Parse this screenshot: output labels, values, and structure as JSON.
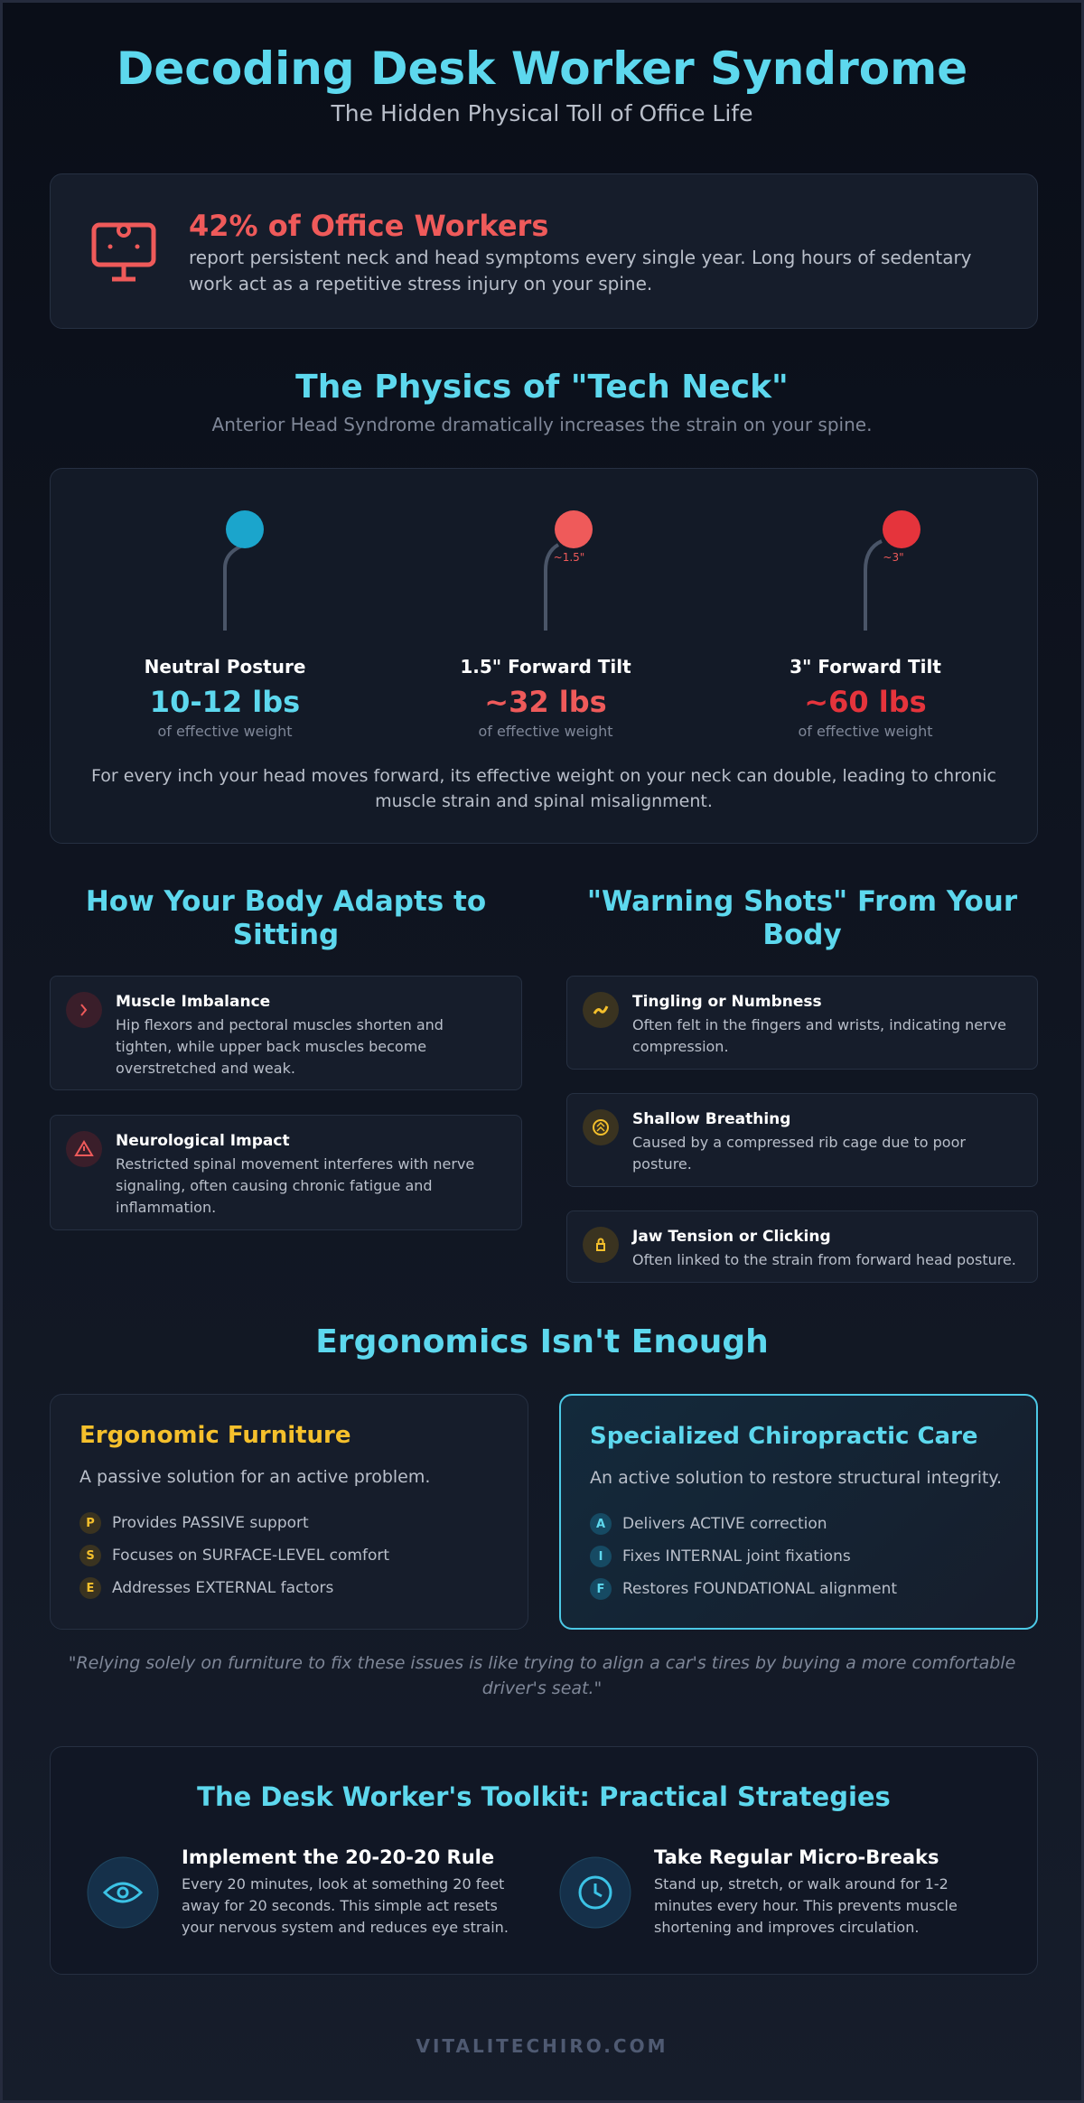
{
  "header": {
    "title": "Decoding Desk Worker Syndrome",
    "subtitle": "The Hidden Physical Toll of Office Life"
  },
  "stat": {
    "headline": "42% of Office Workers",
    "text": "report persistent neck and head symptoms every single year. Long hours of sedentary work act as a repetitive stress injury on your spine."
  },
  "physics": {
    "title": "The Physics of \"Tech Neck\"",
    "subtitle": "Anterior Head Syndrome dramatically increases the strain on your spine.",
    "postures": [
      {
        "label": "Neutral Posture",
        "weight": "10-12 lbs",
        "caption": "of effective weight"
      },
      {
        "angle": "~1.5\"",
        "label": "1.5\" Forward Tilt",
        "weight": "~32 lbs",
        "caption": "of effective weight"
      },
      {
        "angle": "~3\"",
        "label": "3\" Forward Tilt",
        "weight": "~60 lbs",
        "caption": "of effective weight"
      }
    ],
    "note": "For every inch your head moves forward, its effective weight on your neck can double, leading to chronic muscle strain and spinal misalignment."
  },
  "adapts": {
    "title": "How Your Body Adapts to Sitting",
    "items": [
      {
        "title": "Muscle Imbalance",
        "text": "Hip flexors and pectoral muscles shorten and tighten, while upper back muscles become overstretched and weak."
      },
      {
        "title": "Neurological Impact",
        "text": "Restricted spinal movement interferes with nerve signaling, often causing chronic fatigue and inflammation."
      }
    ]
  },
  "warnings": {
    "title": "\"Warning Shots\" From Your Body",
    "items": [
      {
        "title": "Tingling or Numbness",
        "text": "Often felt in the fingers and wrists, indicating nerve compression."
      },
      {
        "title": "Shallow Breathing",
        "text": "Caused by a compressed rib cage due to poor posture."
      },
      {
        "title": "Jaw Tension or Clicking",
        "text": "Often linked to the strain from forward head posture."
      }
    ]
  },
  "ergonomics": {
    "title": "Ergonomics Isn't Enough",
    "furniture": {
      "title": "Ergonomic Furniture",
      "subtitle": "A passive solution for an active problem.",
      "points": [
        {
          "badge": "P",
          "text": "Provides PASSIVE support"
        },
        {
          "badge": "S",
          "text": "Focuses on SURFACE-LEVEL comfort"
        },
        {
          "badge": "E",
          "text": "Addresses EXTERNAL factors"
        }
      ]
    },
    "care": {
      "title": "Specialized Chiropractic Care",
      "subtitle": "An active solution to restore structural integrity.",
      "points": [
        {
          "badge": "A",
          "text": "Delivers ACTIVE correction"
        },
        {
          "badge": "I",
          "text": "Fixes INTERNAL joint fixations"
        },
        {
          "badge": "F",
          "text": "Restores FOUNDATIONAL alignment"
        }
      ]
    },
    "quote": "\"Relying solely on furniture to fix these issues is like trying to align a car's tires by buying a more comfortable driver's seat.\""
  },
  "toolkit": {
    "title": "The Desk Worker's Toolkit: Practical Strategies",
    "items": [
      {
        "title": "Implement the 20-20-20 Rule",
        "text": "Every 20 minutes, look at something 20 feet away for 20 seconds. This simple act resets your nervous system and reduces eye strain."
      },
      {
        "title": "Take Regular Micro-Breaks",
        "text": "Stand up, stretch, or walk around for 1-2 minutes every hour. This prevents muscle shortening and improves circulation."
      }
    ]
  },
  "footer": "VITALITECHIRO.COM"
}
